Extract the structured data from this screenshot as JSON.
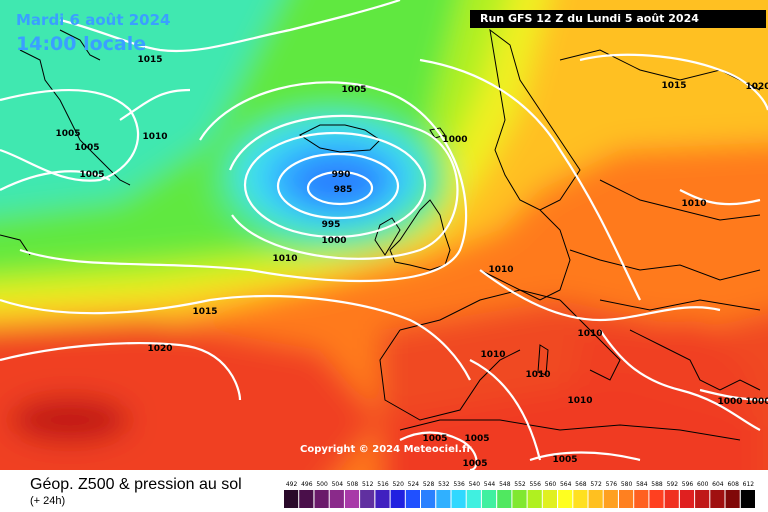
{
  "header": {
    "date": "Mardi 6 août 2024",
    "time": "14:00 locale",
    "run": "Run GFS 12 Z du Lundi 5 août 2024"
  },
  "copyright": "Copyright © 2024 Meteociel.fr",
  "footer": {
    "title": "Géop. Z500 & pression au sol",
    "subtitle": "(+ 24h)"
  },
  "isobar_labels": [
    "1015",
    "1005",
    "1005",
    "1010",
    "1005",
    "1005",
    "1000",
    "990",
    "985",
    "995",
    "1000",
    "1010",
    "1015",
    "1020",
    "1010",
    "1010",
    "1010",
    "1010",
    "1010",
    "1005",
    "1005",
    "1005",
    "1005",
    "1000",
    "1000",
    "1015",
    "1020",
    "1010"
  ],
  "legend": {
    "values": [
      "492",
      "496",
      "500",
      "504",
      "508",
      "512",
      "516",
      "520",
      "524",
      "528",
      "532",
      "536",
      "540",
      "544",
      "548",
      "552",
      "556",
      "560",
      "564",
      "568",
      "572",
      "576",
      "580",
      "584",
      "588",
      "592",
      "596",
      "600",
      "604",
      "608",
      "612"
    ],
    "colors": [
      "#2a0a2a",
      "#4a0f4a",
      "#6a1a6a",
      "#8a2a8a",
      "#a83aa8",
      "#6030a0",
      "#4020c0",
      "#2020e0",
      "#2050ff",
      "#2a80ff",
      "#30b0ff",
      "#30d8ff",
      "#40f0e0",
      "#40f0a0",
      "#50e860",
      "#80e830",
      "#b0f020",
      "#e0f020",
      "#ffff20",
      "#ffe020",
      "#ffc020",
      "#ffa020",
      "#ff8020",
      "#ff6020",
      "#ff4020",
      "#f03020",
      "#e02020",
      "#c01818",
      "#a01010",
      "#800808",
      "#000000"
    ]
  }
}
